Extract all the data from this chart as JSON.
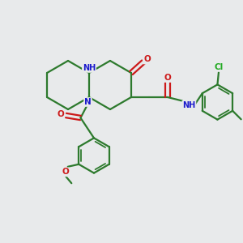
{
  "background_color": "#e8eaeb",
  "bond_color": "#2d7a2d",
  "atom_colors": {
    "N": "#1a1acc",
    "O": "#cc1a1a",
    "Cl": "#22aa22",
    "C": "#2d7a2d"
  },
  "bond_width": 1.6,
  "figsize": [
    3.0,
    3.0
  ],
  "dpi": 100
}
